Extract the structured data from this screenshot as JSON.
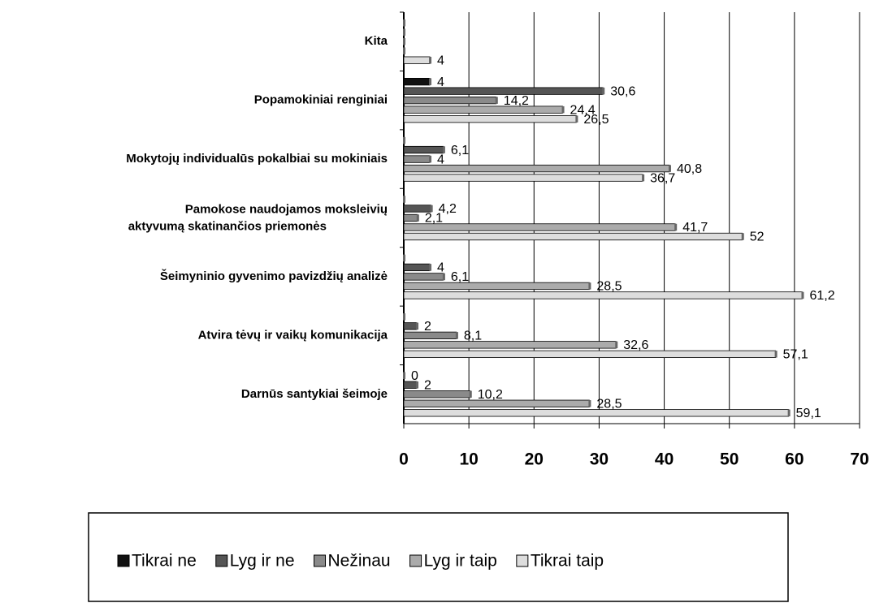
{
  "chart_data": {
    "type": "bar",
    "orientation": "horizontal",
    "categories": [
      "Kita",
      "Popamokiniai renginiai",
      "Mokytojų individualūs pokalbiai su mokiniais",
      "Pamokose naudojamos moksleivių aktyvumą skatinančios priemonės",
      "Šeimyninio gyvenimo pavizdžių analizė",
      "Atvira tėvų ir vaikų komunikacija",
      "Darnūs santykiai šeimoje"
    ],
    "series": [
      {
        "name": "Tikrai ne",
        "color": "#111111",
        "values": [
          0,
          4,
          0,
          0,
          0,
          0,
          0
        ],
        "value_labels": [
          null,
          "4",
          null,
          null,
          null,
          null,
          "0"
        ]
      },
      {
        "name": "Lyg ir ne",
        "color": "#555555",
        "values": [
          0,
          30.6,
          6.1,
          4.2,
          4,
          2,
          2
        ],
        "value_labels": [
          null,
          "30,6",
          "6,1",
          "4,2",
          "4",
          "2",
          "2"
        ]
      },
      {
        "name": "Nežinau",
        "color": "#8a8a8a",
        "values": [
          0,
          14.2,
          4,
          2.1,
          6.1,
          8.1,
          10.2
        ],
        "value_labels": [
          null,
          "14,2",
          "4",
          "2,1",
          "6,1",
          "8,1",
          "10,2"
        ]
      },
      {
        "name": "Lyg ir taip",
        "color": "#ababab",
        "values": [
          0,
          24.4,
          40.8,
          41.7,
          28.5,
          32.6,
          28.5
        ],
        "value_labels": [
          null,
          "24,4",
          "40,8",
          "41,7",
          "28,5",
          "32,6",
          "28,5"
        ]
      },
      {
        "name": "Tikrai taip",
        "color": "#dddddd",
        "values": [
          4,
          26.5,
          36.7,
          52,
          61.2,
          57.1,
          59.1
        ],
        "value_labels": [
          "4",
          "26,5",
          "36,7",
          "52",
          "61,2",
          "57,1",
          "59,1"
        ]
      }
    ],
    "xlim": [
      0,
      70
    ],
    "xticks": [
      0,
      10,
      20,
      30,
      40,
      50,
      60,
      70
    ],
    "grid": true,
    "legend": "bottom"
  }
}
